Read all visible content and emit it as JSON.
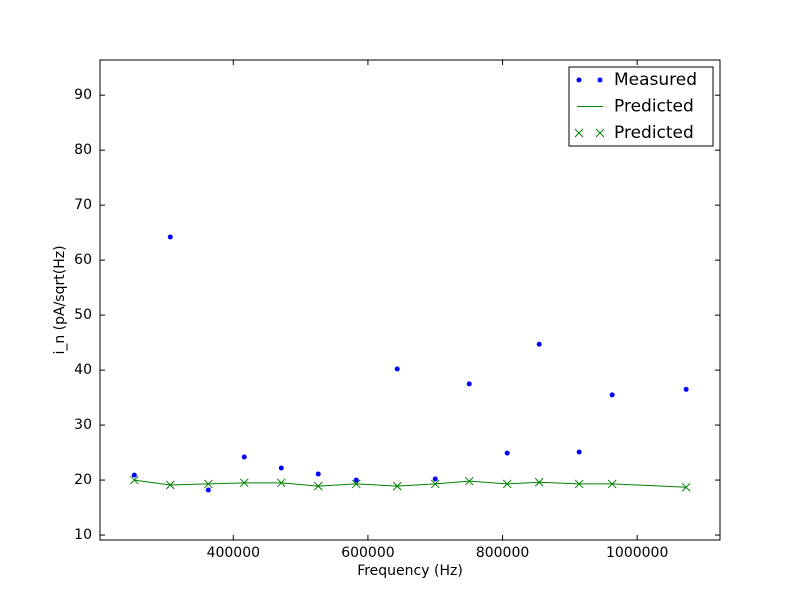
{
  "chart_data": {
    "type": "scatter-line",
    "x_label": "Frequency (Hz)",
    "y_label": "i_n (pA/sqrt(Hz)",
    "x": [
      253000,
      306400,
      362900,
      416300,
      471300,
      526200,
      582700,
      643500,
      700000,
      750500,
      806900,
      854400,
      913800,
      962800,
      1072700
    ],
    "series": [
      {
        "name": "Measured",
        "color": "#0000ff",
        "marker": "dot",
        "line": false,
        "values": [
          20.9,
          64.2,
          18.2,
          24.2,
          22.2,
          21.1,
          20.0,
          40.2,
          20.2,
          37.5,
          24.9,
          44.7,
          25.1,
          35.5,
          36.5
        ]
      },
      {
        "name": "Predicted",
        "color": "#008000",
        "marker": "none",
        "line": true,
        "values": [
          20.0,
          19.1,
          19.3,
          19.5,
          19.5,
          18.9,
          19.3,
          18.9,
          19.3,
          19.8,
          19.3,
          19.6,
          19.3,
          19.3,
          18.7
        ]
      },
      {
        "name": "Predicted",
        "color": "#008000",
        "marker": "x",
        "line": false,
        "values": [
          20.0,
          19.1,
          19.3,
          19.5,
          19.5,
          18.9,
          19.3,
          18.9,
          19.3,
          19.8,
          19.3,
          19.6,
          19.3,
          19.3,
          18.7
        ]
      }
    ],
    "xlim": [
      202000,
      1123000
    ],
    "ylim": [
      9.1,
      96.4
    ],
    "xticks": [
      400000,
      600000,
      800000,
      1000000
    ],
    "yticks": [
      10,
      20,
      30,
      40,
      50,
      60,
      70,
      80,
      90
    ],
    "legend": "upper right",
    "grid": false
  }
}
